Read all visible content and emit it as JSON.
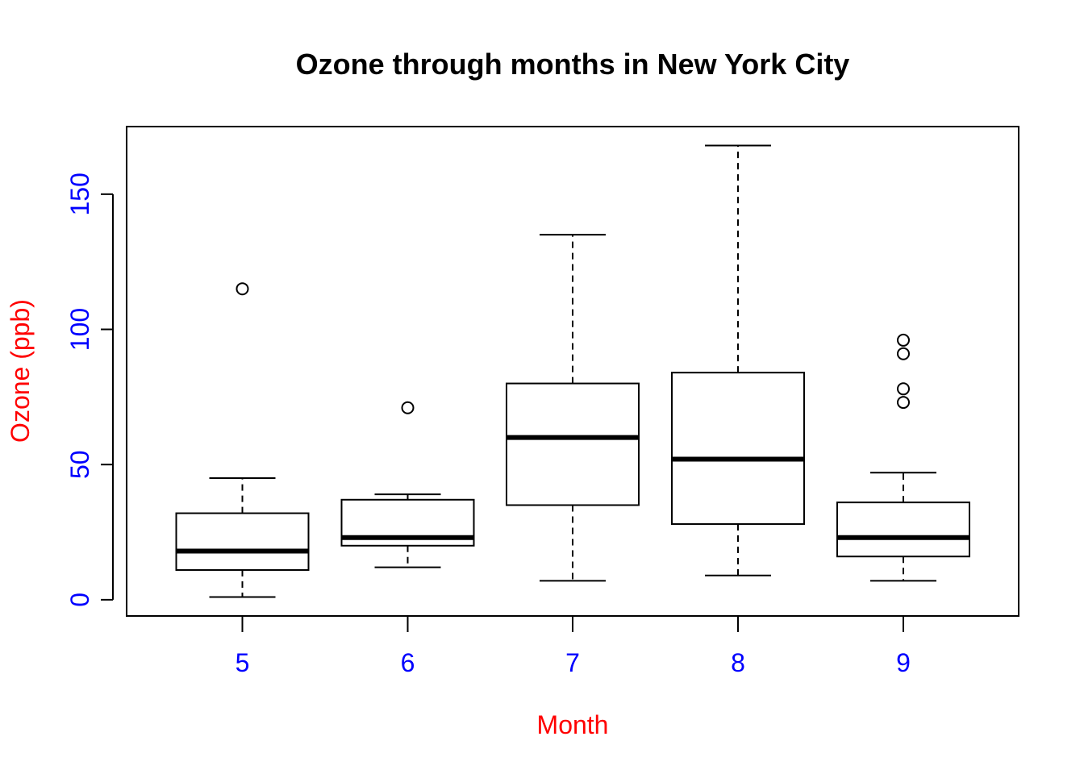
{
  "chart_data": {
    "type": "boxplot",
    "title": "Ozone through months in New York City",
    "xlabel": "Month",
    "ylabel": "Ozone (ppb)",
    "categories": [
      "5",
      "6",
      "7",
      "8",
      "9"
    ],
    "ylim": [
      -6,
      175
    ],
    "yticks": [
      0,
      50,
      100,
      150
    ],
    "grid": false,
    "colors": {
      "tick_labels": "#0000ff",
      "axis_labels": "#ff0000",
      "boxes": "#000000",
      "title": "#000000"
    },
    "boxes": [
      {
        "category": "5",
        "whisker_low": 1,
        "q1": 11,
        "median": 18,
        "q3": 32,
        "whisker_high": 45,
        "outliers": [
          115
        ]
      },
      {
        "category": "6",
        "whisker_low": 12,
        "q1": 20,
        "median": 23,
        "q3": 37,
        "whisker_high": 39,
        "outliers": [
          71
        ]
      },
      {
        "category": "7",
        "whisker_low": 7,
        "q1": 35,
        "median": 60,
        "q3": 80,
        "whisker_high": 135,
        "outliers": []
      },
      {
        "category": "8",
        "whisker_low": 9,
        "q1": 28,
        "median": 52,
        "q3": 84,
        "whisker_high": 168,
        "outliers": []
      },
      {
        "category": "9",
        "whisker_low": 7,
        "q1": 16,
        "median": 23,
        "q3": 36,
        "whisker_high": 47,
        "outliers": [
          73,
          78,
          91,
          96
        ]
      }
    ]
  }
}
